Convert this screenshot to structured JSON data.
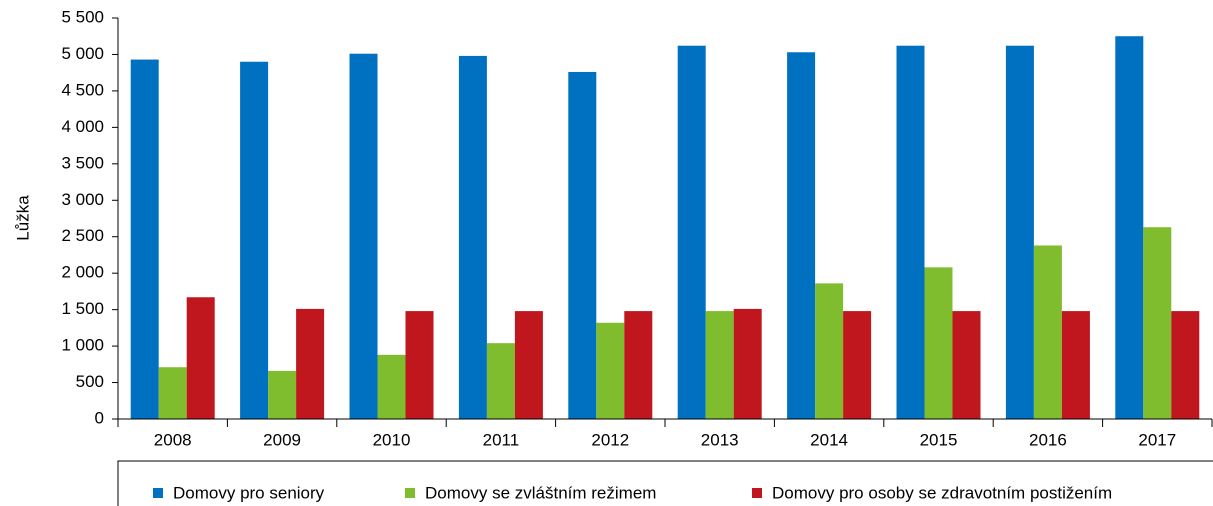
{
  "chart_data": {
    "type": "bar",
    "ylabel": "Lůžka",
    "categories": [
      "2008",
      "2009",
      "2010",
      "2011",
      "2012",
      "2013",
      "2014",
      "2015",
      "2016",
      "2017"
    ],
    "series": [
      {
        "name": "Domovy pro seniory",
        "color": "#0070c0",
        "values": [
          4930,
          4900,
          5010,
          4980,
          4760,
          5120,
          5030,
          5120,
          5120,
          5250
        ]
      },
      {
        "name": "Domovy se zvláštním režimem",
        "color": "#7fbc2e",
        "values": [
          710,
          660,
          880,
          1040,
          1320,
          1480,
          1860,
          2080,
          2380,
          2630
        ]
      },
      {
        "name": "Domovy pro osoby se zdravotním postižením",
        "color": "#c0161e",
        "values": [
          1670,
          1510,
          1480,
          1480,
          1480,
          1510,
          1480,
          1480,
          1480,
          1480
        ]
      }
    ],
    "ylim": [
      0,
      5500
    ],
    "yticks": [
      0,
      500,
      {
        "value": 1000,
        "label": "1 000"
      },
      {
        "value": 1500,
        "label": "1 500"
      },
      {
        "value": 2000,
        "label": "2 000"
      },
      {
        "value": 2500,
        "label": "2 500"
      },
      {
        "value": 3000,
        "label": "3 000"
      },
      {
        "value": 3500,
        "label": "3 500"
      },
      {
        "value": 4000,
        "label": "4 000"
      },
      {
        "value": 4500,
        "label": "4 500"
      },
      {
        "value": 5000,
        "label": "5 000"
      },
      {
        "value": 5500,
        "label": "5 500"
      }
    ],
    "legend": "bottom"
  }
}
